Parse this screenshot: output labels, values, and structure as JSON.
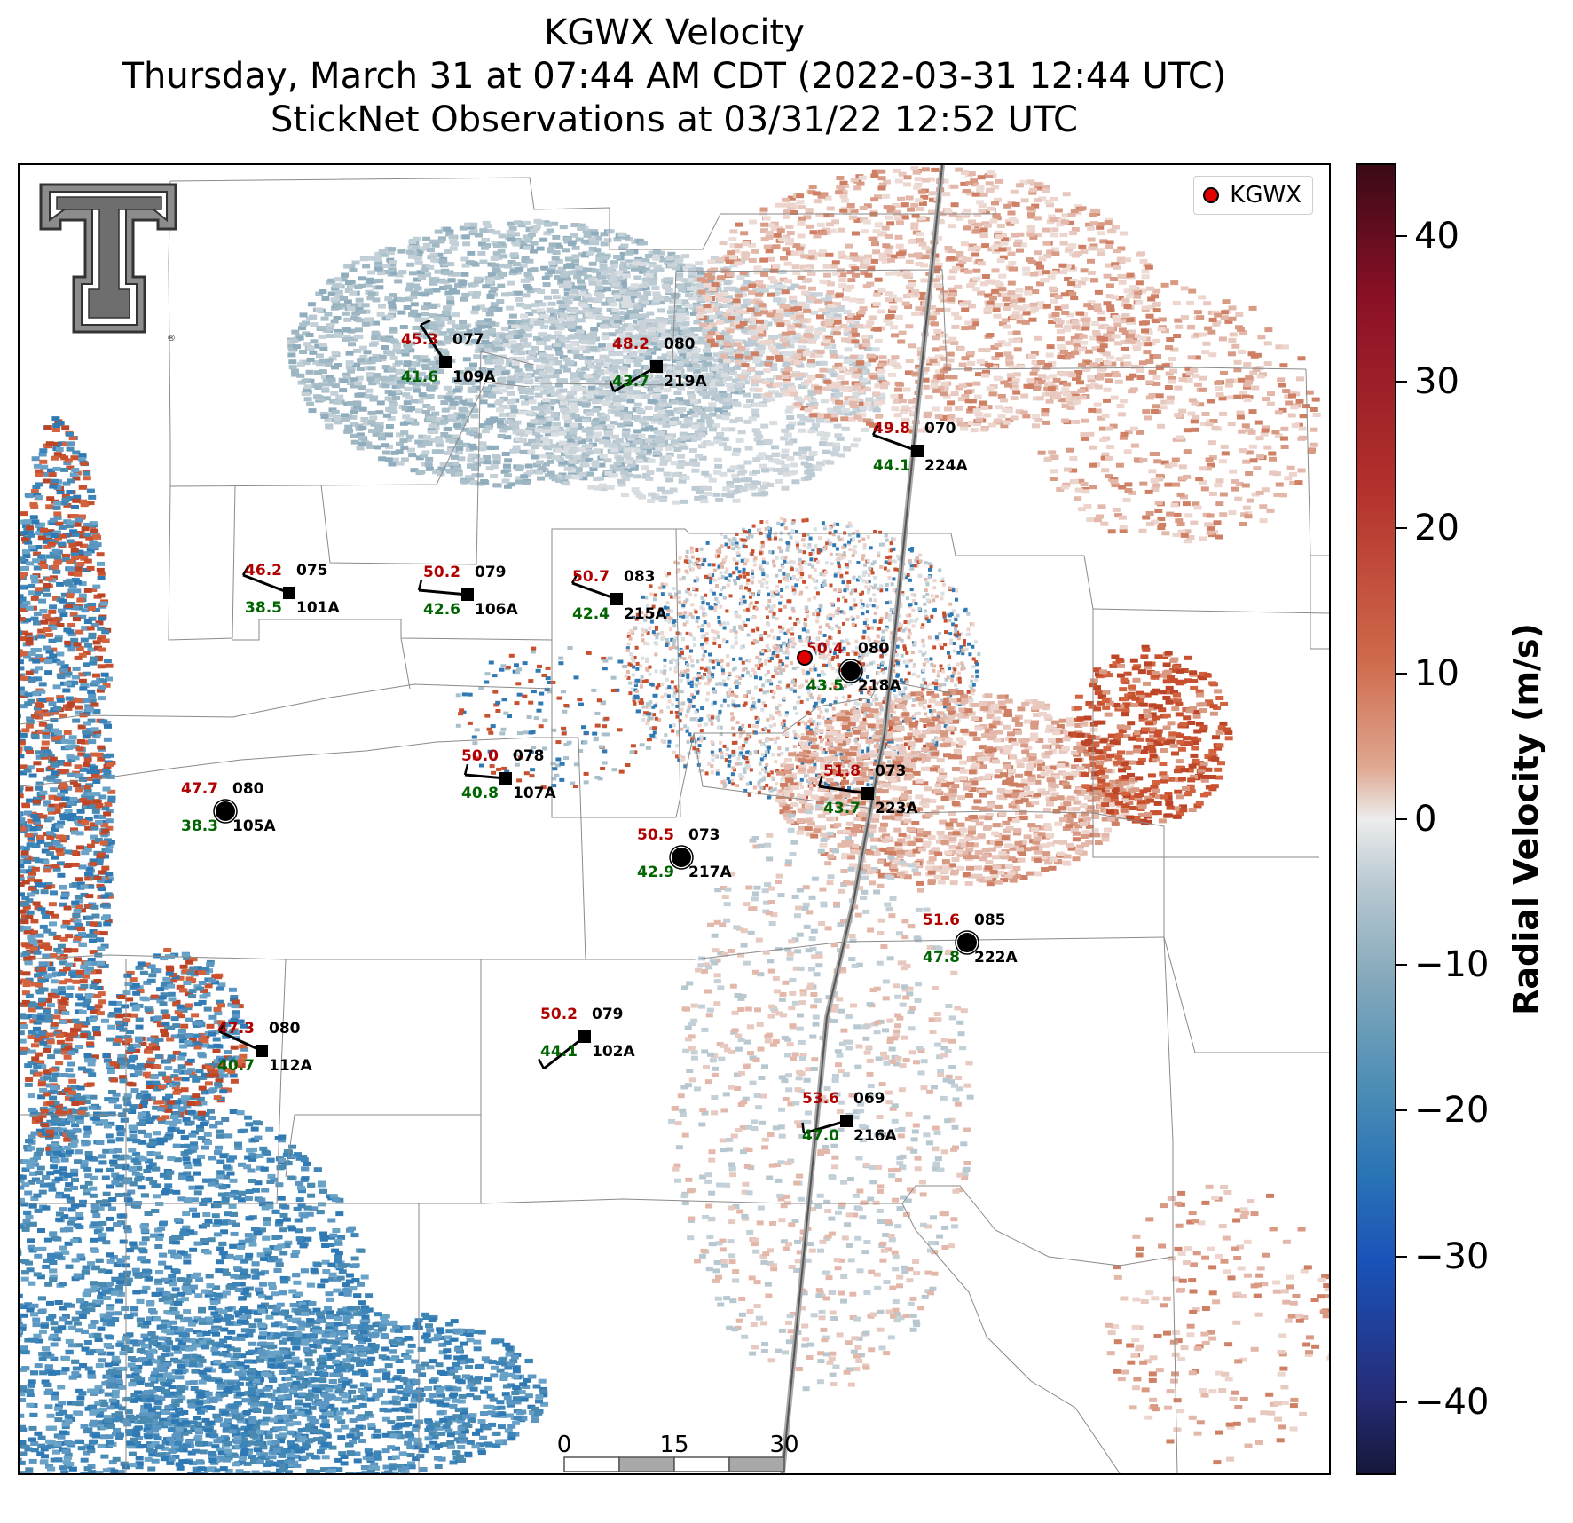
{
  "header": {
    "title": "KGWX Velocity",
    "subtitle1": "Thursday, March 31 at 07:44 AM CDT (2022-03-31 12:44 UTC)",
    "subtitle2": "StickNet Observations at 03/31/22 12:52 UTC"
  },
  "legend": {
    "label": "KGWX",
    "marker_color": "#e00000"
  },
  "colorbar": {
    "label": "Radial Velocity (m/s)",
    "ticks": [
      "40",
      "30",
      "20",
      "10",
      "0",
      "−10",
      "−20",
      "−30",
      "−40"
    ],
    "range": [
      -45,
      45
    ]
  },
  "scalebar": {
    "ticks": [
      "0",
      "15",
      "30"
    ],
    "unit": "km"
  },
  "colors": {
    "temp": "#b00000",
    "dewpoint": "#006400",
    "label": "#000000",
    "outbound": "#c8502e",
    "inbound": "#4a8ab0"
  },
  "stations": [
    {
      "id": "109A",
      "temp": "45.3",
      "dew": "41.6",
      "pressure": "077"
    },
    {
      "id": "219A",
      "temp": "48.2",
      "dew": "43.7",
      "pressure": "080"
    },
    {
      "id": "224A",
      "temp": "49.8",
      "dew": "44.1",
      "pressure": "070"
    },
    {
      "id": "101A",
      "temp": "46.2",
      "dew": "38.5",
      "pressure": "075"
    },
    {
      "id": "106A",
      "temp": "50.2",
      "dew": "42.6",
      "pressure": "079"
    },
    {
      "id": "215A",
      "temp": "50.7",
      "dew": "42.4",
      "pressure": "083"
    },
    {
      "id": "218A",
      "temp": "50.4",
      "dew": "43.5",
      "pressure": "080"
    },
    {
      "id": "107A",
      "temp": "50.0",
      "dew": "40.8",
      "pressure": "078"
    },
    {
      "id": "223A",
      "temp": "51.8",
      "dew": "43.7",
      "pressure": "073"
    },
    {
      "id": "105A",
      "temp": "47.7",
      "dew": "38.3",
      "pressure": "080"
    },
    {
      "id": "217A",
      "temp": "50.5",
      "dew": "42.9",
      "pressure": "073"
    },
    {
      "id": "222A",
      "temp": "51.6",
      "dew": "47.8",
      "pressure": "085"
    },
    {
      "id": "112A",
      "temp": "47.3",
      "dew": "40.7",
      "pressure": "080"
    },
    {
      "id": "102A",
      "temp": "50.2",
      "dew": "44.1",
      "pressure": "079"
    },
    {
      "id": "216A",
      "temp": "53.6",
      "dew": "47.0",
      "pressure": "069"
    }
  ]
}
